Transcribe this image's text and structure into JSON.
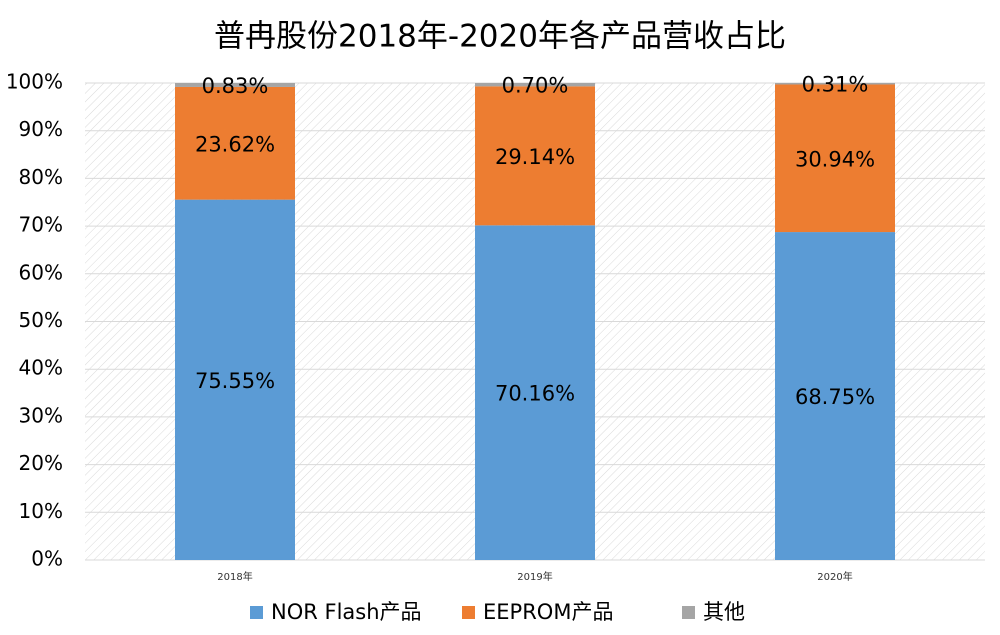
{
  "chart_data": {
    "type": "stacked_bar",
    "title": "普冉股份2018年-2020年各产品营收占比",
    "categories": [
      "2018年",
      "2019年",
      "2020年"
    ],
    "series": [
      {
        "name": "NOR Flash产品",
        "color": "#5b9bd5",
        "values": [
          75.55,
          70.16,
          68.75
        ],
        "value_labels": [
          "75.55%",
          "70.16%",
          "68.75%"
        ]
      },
      {
        "name": "EEPROM产品",
        "color": "#ed7d31",
        "values": [
          23.62,
          29.14,
          30.94
        ],
        "value_labels": [
          "23.62%",
          "29.14%",
          "30.94%"
        ]
      },
      {
        "name": "其他",
        "color": "#a5a5a5",
        "values": [
          0.83,
          0.7,
          0.31
        ],
        "value_labels": [
          "0.83%",
          "0.70%",
          "0.31%"
        ]
      }
    ],
    "ylim": [
      0,
      100
    ],
    "yticks": [
      {
        "value": 0,
        "label": "0%"
      },
      {
        "value": 10,
        "label": "10%"
      },
      {
        "value": 20,
        "label": "20%"
      },
      {
        "value": 30,
        "label": "30%"
      },
      {
        "value": 40,
        "label": "40%"
      },
      {
        "value": 50,
        "label": "50%"
      },
      {
        "value": 60,
        "label": "60%"
      },
      {
        "value": 70,
        "label": "70%"
      },
      {
        "value": 80,
        "label": "80%"
      },
      {
        "value": 90,
        "label": "90%"
      },
      {
        "value": 100,
        "label": "100%"
      }
    ],
    "grid": true,
    "legend": "bottom"
  }
}
